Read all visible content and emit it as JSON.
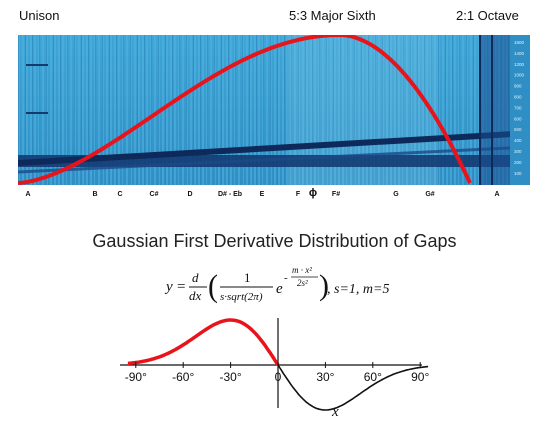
{
  "header": {
    "left_label": "Unison",
    "center_label": "5:3 Major Sixth",
    "right_label": "2:1 Octave"
  },
  "spectrogram": {
    "note_labels": [
      "A",
      "B",
      "C",
      "C#",
      "D",
      "D# - Eb",
      "E",
      "F",
      "ϕ",
      "F#",
      "G",
      "G#",
      "A"
    ],
    "frequency_ticks": [
      "1600",
      "1400",
      "1200",
      "1000",
      "900",
      "800",
      "700",
      "600",
      "500",
      "400",
      "300",
      "200",
      "100"
    ],
    "colors": {
      "background": "#3a9ccf",
      "band": "#12356e",
      "curve": "#e8141c"
    }
  },
  "gaussian": {
    "title": "Gaussian First Derivative Distribution of Gaps",
    "formula": {
      "y": "y",
      "eq": "=",
      "d": "d",
      "dx": "dx",
      "one": "1",
      "denominator": "s·sqrt(2π)",
      "e": "e",
      "exp_num": "m · x²",
      "exp_den": "2s²",
      "minus": "-",
      "params": ", s=1, m=5"
    },
    "x_ticks": [
      "-90°",
      "-60°",
      "-30°",
      "0",
      "30°",
      "60°",
      "90°"
    ],
    "x_axis_label": "x",
    "chart": {
      "x_range": [
        -100,
        100
      ],
      "colors": {
        "positive": "#e8141c",
        "negative": "#111111"
      }
    }
  }
}
